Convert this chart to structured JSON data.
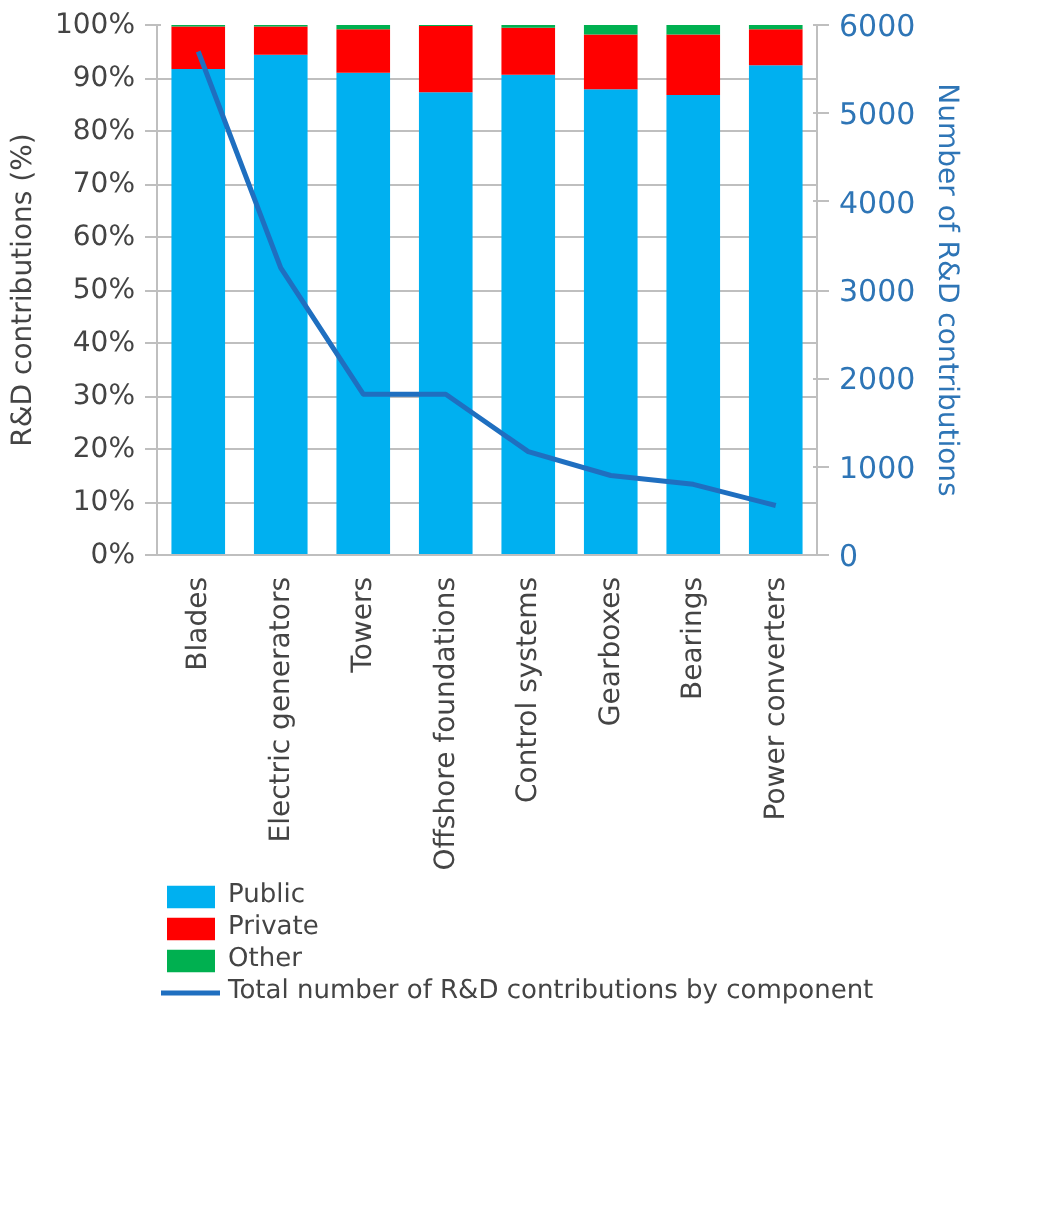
{
  "chart_data": {
    "type": "bar",
    "stacked": true,
    "ylabel": "R&D contributions (%)",
    "y2label": "Number of R&D contributions",
    "categories": [
      "Blades",
      "Electric generators",
      "Towers",
      "Offshore foundations",
      "Control systems",
      "Gearboxes",
      "Bearings",
      "Power converters"
    ],
    "series": [
      {
        "name": "Public",
        "color": "#00b0f0",
        "values": [
          91.7,
          94.4,
          91.0,
          87.3,
          90.6,
          87.9,
          86.8,
          92.4
        ]
      },
      {
        "name": "Private",
        "color": "#ff0000",
        "values": [
          8.0,
          5.3,
          8.2,
          12.5,
          8.9,
          10.3,
          11.4,
          6.8
        ]
      },
      {
        "name": "Other",
        "color": "#00b050",
        "values": [
          0.3,
          0.3,
          0.8,
          0.2,
          0.5,
          1.8,
          1.8,
          0.8
        ]
      },
      {
        "name": "Total number of R&D contributions by component",
        "type": "line",
        "axis": "y2",
        "color": "#1f6fc0",
        "values": [
          5700,
          3250,
          1820,
          1820,
          1170,
          900,
          800,
          560
        ]
      }
    ],
    "ylim": [
      0,
      100
    ],
    "yticks": [
      {
        "value": 0,
        "label": "0%"
      },
      {
        "value": 10,
        "label": "10%"
      },
      {
        "value": 20,
        "label": "20%"
      },
      {
        "value": 30,
        "label": "30%"
      },
      {
        "value": 40,
        "label": "40%"
      },
      {
        "value": 50,
        "label": "50%"
      },
      {
        "value": 60,
        "label": "60%"
      },
      {
        "value": 70,
        "label": "70%"
      },
      {
        "value": 80,
        "label": "80%"
      },
      {
        "value": 90,
        "label": "90%"
      },
      {
        "value": 100,
        "label": "100%"
      }
    ],
    "y2lim": [
      0,
      6000
    ],
    "y2ticks": [
      0,
      1000,
      2000,
      3000,
      4000,
      5000,
      6000
    ],
    "grid": "y",
    "legend": "bottom"
  }
}
